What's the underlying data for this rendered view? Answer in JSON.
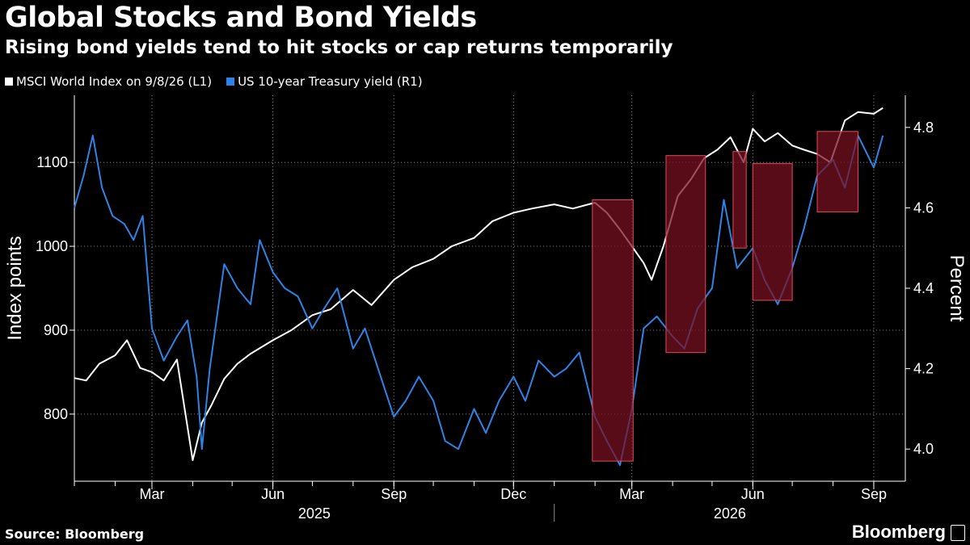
{
  "header": {
    "title": "Global Stocks and Bond Yields",
    "subtitle": "Rising bond yields tend to hit stocks or cap returns temporarily"
  },
  "footer": {
    "source": "Source: Bloomberg",
    "brand": "Bloomberg"
  },
  "colors": {
    "msci": "#ffffff",
    "ust": "#2f83e4",
    "highlight": "#7a1021",
    "highlight_border": "#e04a5a",
    "grid": "#8a8a8a",
    "background": "#000000"
  },
  "chart_data": {
    "type": "line",
    "title": "Global Stocks and Bond Yields",
    "subtitle": "Rising bond yields tend to hit stocks or cap returns temporarily",
    "xlabel": "",
    "ylabel_left": "Index points",
    "ylabel_right": "Percent",
    "ylim_left": [
      720,
      1180
    ],
    "ylim_right": [
      3.92,
      4.88
    ],
    "left_ticks": [
      800,
      900,
      1000,
      1100
    ],
    "right_ticks": [
      4.0,
      4.2,
      4.4,
      4.6,
      4.8
    ],
    "x_range": [
      "2025-01-01",
      "2026-09-25"
    ],
    "month_ticks": [
      {
        "date": "2025-03-01",
        "label": "Mar"
      },
      {
        "date": "2025-06-01",
        "label": "Jun"
      },
      {
        "date": "2025-09-01",
        "label": "Sep"
      },
      {
        "date": "2025-12-01",
        "label": "Dec"
      },
      {
        "date": "2026-03-01",
        "label": "Mar"
      },
      {
        "date": "2026-06-01",
        "label": "Jun"
      },
      {
        "date": "2026-09-01",
        "label": "Sep"
      }
    ],
    "year_labels": [
      {
        "year": "2025",
        "start": "2025-01-01",
        "end": "2026-01-01"
      },
      {
        "year": "2026",
        "start": "2026-01-01",
        "end": "2026-09-25"
      }
    ],
    "grid": true,
    "legend_position": "top-left",
    "series": [
      {
        "name": "MSCI World Index on 9/8/26 (L1)",
        "axis": "left",
        "x": [
          "2025-01-01",
          "2025-01-10",
          "2025-01-20",
          "2025-02-01",
          "2025-02-10",
          "2025-02-20",
          "2025-03-01",
          "2025-03-10",
          "2025-03-20",
          "2025-04-01",
          "2025-04-08",
          "2025-04-15",
          "2025-04-25",
          "2025-05-05",
          "2025-05-15",
          "2025-06-01",
          "2025-06-15",
          "2025-07-01",
          "2025-07-15",
          "2025-08-01",
          "2025-08-15",
          "2025-09-01",
          "2025-09-15",
          "2025-10-01",
          "2025-10-15",
          "2025-11-01",
          "2025-11-15",
          "2025-12-01",
          "2025-12-15",
          "2026-01-01",
          "2026-01-15",
          "2026-02-01",
          "2026-02-10",
          "2026-02-20",
          "2026-03-01",
          "2026-03-10",
          "2026-03-16",
          "2026-03-25",
          "2026-04-05",
          "2026-04-15",
          "2026-04-25",
          "2026-05-05",
          "2026-05-15",
          "2026-05-25",
          "2026-06-01",
          "2026-06-10",
          "2026-06-20",
          "2026-07-01",
          "2026-07-10",
          "2026-07-20",
          "2026-07-30",
          "2026-08-10",
          "2026-08-20",
          "2026-09-01",
          "2026-09-08"
        ],
        "values": [
          843,
          840,
          860,
          870,
          888,
          855,
          850,
          840,
          865,
          745,
          790,
          810,
          842,
          860,
          872,
          888,
          900,
          918,
          925,
          948,
          930,
          960,
          975,
          985,
          1000,
          1010,
          1030,
          1040,
          1045,
          1050,
          1045,
          1052,
          1040,
          1020,
          1000,
          980,
          960,
          1000,
          1060,
          1080,
          1105,
          1115,
          1130,
          1100,
          1140,
          1125,
          1135,
          1120,
          1115,
          1110,
          1100,
          1150,
          1160,
          1158,
          1165
        ]
      },
      {
        "name": "US 10-year Treasury yield (R1)",
        "axis": "right",
        "x": [
          "2025-01-01",
          "2025-01-08",
          "2025-01-15",
          "2025-01-22",
          "2025-01-30",
          "2025-02-08",
          "2025-02-15",
          "2025-02-22",
          "2025-03-01",
          "2025-03-10",
          "2025-03-20",
          "2025-03-28",
          "2025-04-04",
          "2025-04-08",
          "2025-04-14",
          "2025-04-25",
          "2025-05-05",
          "2025-05-15",
          "2025-05-22",
          "2025-06-01",
          "2025-06-10",
          "2025-06-20",
          "2025-07-01",
          "2025-07-10",
          "2025-07-20",
          "2025-08-01",
          "2025-08-10",
          "2025-08-20",
          "2025-09-01",
          "2025-09-10",
          "2025-09-20",
          "2025-10-01",
          "2025-10-10",
          "2025-10-20",
          "2025-11-01",
          "2025-11-10",
          "2025-11-20",
          "2025-12-01",
          "2025-12-10",
          "2025-12-20",
          "2026-01-01",
          "2026-01-10",
          "2026-01-20",
          "2026-02-01",
          "2026-02-10",
          "2026-02-20",
          "2026-03-01",
          "2026-03-10",
          "2026-03-20",
          "2026-04-01",
          "2026-04-10",
          "2026-04-20",
          "2026-05-01",
          "2026-05-10",
          "2026-05-20",
          "2026-06-01",
          "2026-06-10",
          "2026-06-20",
          "2026-07-01",
          "2026-07-10",
          "2026-07-20",
          "2026-08-01",
          "2026-08-10",
          "2026-08-20",
          "2026-09-01",
          "2026-09-08"
        ],
        "values": [
          4.6,
          4.68,
          4.78,
          4.65,
          4.58,
          4.56,
          4.52,
          4.58,
          4.3,
          4.22,
          4.28,
          4.32,
          4.18,
          4.0,
          4.2,
          4.46,
          4.4,
          4.36,
          4.52,
          4.44,
          4.4,
          4.38,
          4.3,
          4.35,
          4.4,
          4.25,
          4.3,
          4.2,
          4.08,
          4.12,
          4.18,
          4.12,
          4.02,
          4.0,
          4.1,
          4.04,
          4.12,
          4.18,
          4.12,
          4.22,
          4.18,
          4.2,
          4.24,
          4.08,
          4.02,
          3.96,
          4.1,
          4.3,
          4.33,
          4.28,
          4.25,
          4.35,
          4.4,
          4.62,
          4.45,
          4.5,
          4.42,
          4.36,
          4.45,
          4.55,
          4.68,
          4.72,
          4.65,
          4.78,
          4.7,
          4.78
        ]
      }
    ],
    "highlights": [
      {
        "start": "2026-01-30",
        "end": "2026-03-02",
        "y_top": 4.62,
        "y_bottom": 3.97
      },
      {
        "start": "2026-03-27",
        "end": "2026-04-26",
        "y_top": 4.73,
        "y_bottom": 4.24
      },
      {
        "start": "2026-05-17",
        "end": "2026-05-27",
        "y_top": 4.74,
        "y_bottom": 4.5
      },
      {
        "start": "2026-06-01",
        "end": "2026-07-01",
        "y_top": 4.71,
        "y_bottom": 4.37
      },
      {
        "start": "2026-07-20",
        "end": "2026-08-20",
        "y_top": 4.79,
        "y_bottom": 4.59
      }
    ]
  }
}
